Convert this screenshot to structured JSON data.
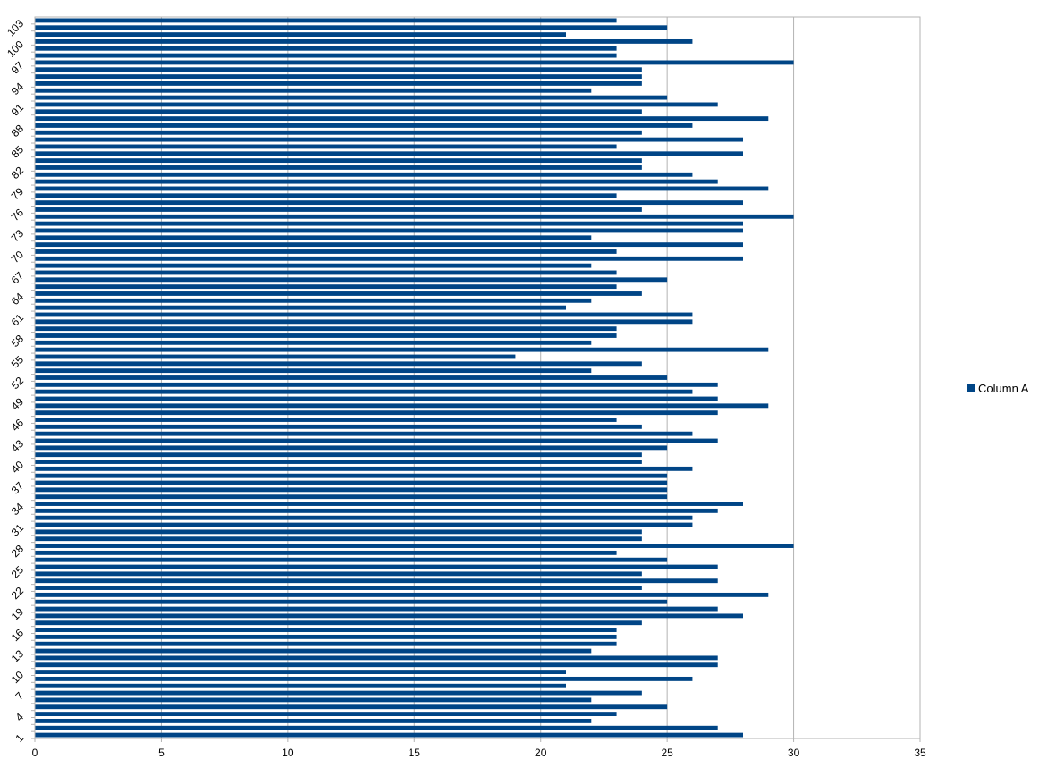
{
  "chart_data": {
    "type": "bar",
    "orientation": "horizontal",
    "title": "",
    "xlabel": "",
    "ylabel": "",
    "xlim": [
      0,
      35
    ],
    "x_ticks": [
      0,
      5,
      10,
      15,
      20,
      25,
      30,
      35
    ],
    "category_tick_step": 3,
    "grid": "vertical",
    "legend_position": "right",
    "bar_color": "#004586",
    "series": [
      {
        "name": "Column A",
        "values": [
          28,
          27,
          22,
          23,
          25,
          22,
          24,
          21,
          26,
          21,
          27,
          27,
          22,
          23,
          23,
          23,
          24,
          28,
          27,
          25,
          29,
          24,
          27,
          24,
          27,
          25,
          23,
          30,
          24,
          24,
          26,
          26,
          27,
          28,
          25,
          25,
          25,
          25,
          26,
          24,
          24,
          25,
          27,
          26,
          24,
          23,
          27,
          29,
          27,
          26,
          27,
          25,
          22,
          24,
          19,
          29,
          22,
          23,
          23,
          26,
          26,
          21,
          22,
          24,
          23,
          25,
          23,
          22,
          28,
          23,
          28,
          22,
          28,
          28,
          30,
          24,
          28,
          23,
          29,
          27,
          26,
          24,
          24,
          28,
          23,
          28,
          24,
          26,
          29,
          24,
          27,
          25,
          22,
          24,
          24,
          24,
          30,
          23,
          23,
          26,
          21,
          25,
          23
        ]
      }
    ]
  }
}
